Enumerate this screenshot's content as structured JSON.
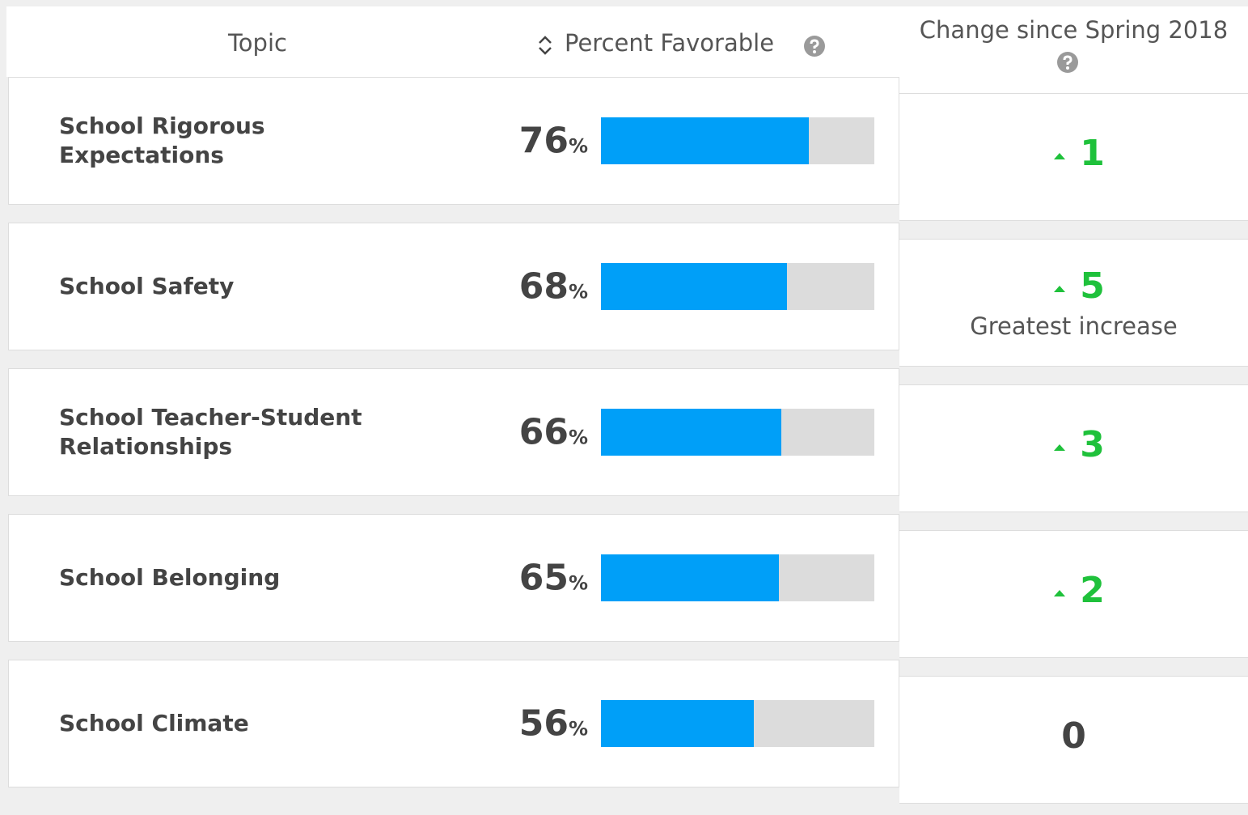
{
  "table": {
    "headers": {
      "topic": "Topic",
      "percent": "Percent Favorable",
      "change": "Change since Spring 2018"
    },
    "percent_unit": "%",
    "rows": [
      {
        "topic": "School Rigorous Expectations",
        "percent": 76,
        "change": 1
      },
      {
        "topic": "School Safety",
        "percent": 68,
        "change": 5,
        "note": "Greatest increase"
      },
      {
        "topic": "School Teacher-Student Relationships",
        "percent": 66,
        "change": 3
      },
      {
        "topic": "School Belonging",
        "percent": 65,
        "change": 2
      },
      {
        "topic": "School Climate",
        "percent": 56,
        "change": 0
      }
    ]
  }
}
